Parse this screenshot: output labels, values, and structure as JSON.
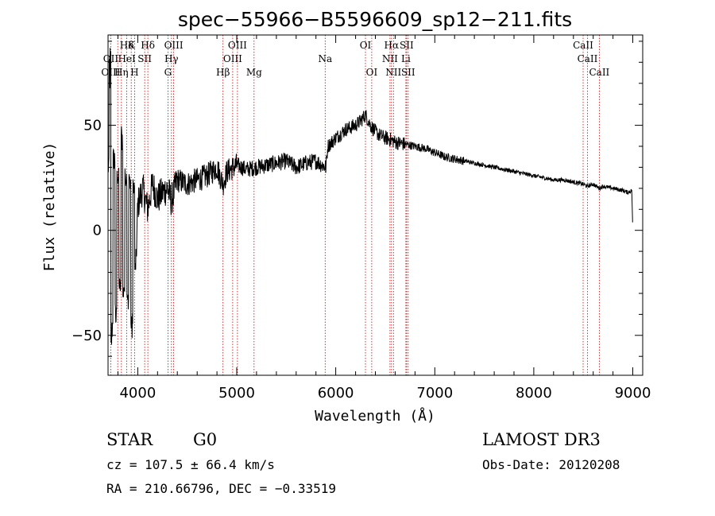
{
  "chart_data": {
    "type": "line",
    "title": "spec−55966−B5596609_sp12−211.fits",
    "xlabel": "Wavelength (Å)",
    "ylabel": "Flux (relative)",
    "xlim": [
      3700,
      9100
    ],
    "ylim": [
      -69,
      93
    ],
    "xticks": [
      4000,
      5000,
      6000,
      7000,
      8000,
      9000
    ],
    "xtick_labels": [
      "4000",
      "5000",
      "6000",
      "7000",
      "8000",
      "9000"
    ],
    "yticks": [
      50,
      0,
      -50
    ],
    "ytick_labels": [
      "50",
      "0",
      "−50"
    ],
    "grid": false,
    "series": [
      {
        "name": "spectrum",
        "x": [
          3700,
          3720,
          3740,
          3760,
          3780,
          3800,
          3820,
          3840,
          3860,
          3880,
          3900,
          3920,
          3940,
          3960,
          3980,
          4000,
          4050,
          4100,
          4150,
          4200,
          4250,
          4300,
          4340,
          4400,
          4500,
          4600,
          4700,
          4800,
          4861,
          4900,
          5000,
          5100,
          5200,
          5300,
          5400,
          5500,
          5600,
          5700,
          5800,
          5900,
          5920,
          6000,
          6100,
          6200,
          6250,
          6300,
          6350,
          6400,
          6450,
          6500,
          6563,
          6600,
          6700,
          6800,
          6900,
          7000,
          7100,
          7200,
          7300,
          7400,
          7500,
          7600,
          7700,
          7800,
          7900,
          8000,
          8100,
          8200,
          8300,
          8400,
          8498,
          8542,
          8600,
          8662,
          8700,
          8800,
          8900,
          8950,
          8990,
          9000
        ],
        "y": [
          35,
          90,
          -58,
          40,
          -45,
          30,
          -30,
          52,
          -35,
          30,
          -40,
          28,
          -52,
          25,
          -20,
          12,
          20,
          10,
          22,
          15,
          18,
          20,
          14,
          24,
          22,
          24,
          26,
          30,
          22,
          28,
          31,
          29,
          30,
          31,
          32,
          33,
          30,
          32,
          33,
          30,
          40,
          44,
          48,
          50,
          52,
          55,
          50,
          47,
          45,
          44,
          43,
          42,
          41,
          40,
          39,
          37,
          35,
          34,
          33,
          32,
          31,
          30,
          29,
          28,
          27,
          26,
          25,
          24,
          24,
          23,
          22,
          21,
          22,
          20,
          21,
          20,
          19,
          18,
          19,
          0
        ]
      }
    ],
    "spectral_lines": [
      {
        "name": "Hδ",
        "wavelength": 3889,
        "row": 1
      },
      {
        "name": "K",
        "wavelength": 3934,
        "row": 1
      },
      {
        "name": "Hδ",
        "wavelength": 4102,
        "row": 1
      },
      {
        "name": "OIII",
        "wavelength": 4363,
        "row": 1
      },
      {
        "name": "OIII",
        "wavelength": 5007,
        "row": 1
      },
      {
        "name": "OI",
        "wavelength": 6300,
        "row": 1
      },
      {
        "name": "Hα",
        "wavelength": 6563,
        "row": 1
      },
      {
        "name": "SII",
        "wavelength": 6716,
        "row": 1
      },
      {
        "name": "CaII",
        "wavelength": 8498,
        "row": 1
      },
      {
        "name": "OII",
        "wavelength": 3727,
        "row": 2
      },
      {
        "name": "HeI",
        "wavelength": 3889,
        "row": 2
      },
      {
        "name": "SII",
        "wavelength": 4070,
        "row": 2
      },
      {
        "name": "Hγ",
        "wavelength": 4340,
        "row": 2
      },
      {
        "name": "OIII",
        "wavelength": 4959,
        "row": 2
      },
      {
        "name": "Na",
        "wavelength": 5893,
        "row": 2
      },
      {
        "name": "NII",
        "wavelength": 6548,
        "row": 2
      },
      {
        "name": "Li",
        "wavelength": 6708,
        "row": 2
      },
      {
        "name": "CaII",
        "wavelength": 8542,
        "row": 2
      },
      {
        "name": "OIII",
        "wavelength": 3727,
        "row": 3
      },
      {
        "name": "Hη",
        "wavelength": 3835,
        "row": 3
      },
      {
        "name": "H",
        "wavelength": 3968,
        "row": 3
      },
      {
        "name": "G",
        "wavelength": 4305,
        "row": 3
      },
      {
        "name": "Hβ",
        "wavelength": 4861,
        "row": 3
      },
      {
        "name": "Mg",
        "wavelength": 5175,
        "row": 3
      },
      {
        "name": "OI",
        "wavelength": 6363,
        "row": 3
      },
      {
        "name": "NII",
        "wavelength": 6583,
        "row": 3
      },
      {
        "name": "SII",
        "wavelength": 6731,
        "row": 3
      },
      {
        "name": "CaII",
        "wavelength": 8662,
        "row": 3
      }
    ],
    "line_positions": [
      3727,
      3798,
      3835,
      3889,
      3934,
      3968,
      4070,
      4102,
      4305,
      4340,
      4363,
      4861,
      4959,
      5007,
      5175,
      5893,
      6300,
      6363,
      6548,
      6563,
      6583,
      6708,
      6716,
      6731,
      8498,
      8542,
      8662
    ]
  },
  "info": {
    "class": "STAR",
    "subclass": "G0",
    "survey": "LAMOST DR3",
    "cz": "cz = 107.5 ± 66.4 km/s",
    "obs_date": "Obs-Date: 20120208",
    "coords": "RA = 210.66796, DEC =  −0.33519"
  },
  "colors": {
    "spectrum": "#000000",
    "line_marker": "#cc0000"
  }
}
